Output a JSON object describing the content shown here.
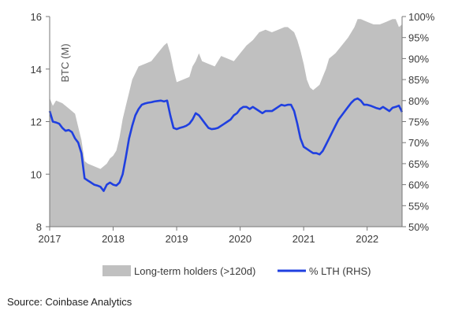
{
  "chart_data": {
    "type": "area",
    "xlabel": "",
    "ylabel": "BTC (M)",
    "ylim": [
      8,
      16
    ],
    "y2lim": [
      50,
      100
    ],
    "x_ticks": [
      "2017",
      "2018",
      "2019",
      "2020",
      "2021",
      "2022"
    ],
    "y_ticks": [
      "8",
      "10",
      "12",
      "14",
      "16"
    ],
    "y2_ticks": [
      "50%",
      "55%",
      "60%",
      "65%",
      "70%",
      "75%",
      "80%",
      "85%",
      "90%",
      "95%",
      "100%"
    ],
    "x_range": [
      2017.0,
      2022.55
    ],
    "grid": false,
    "legend_position": "bottom",
    "series": [
      {
        "name": "Long-term holders (>120d)",
        "axis": "left",
        "color": "#c0c0c0",
        "x": [
          2017.0,
          2017.05,
          2017.1,
          2017.2,
          2017.3,
          2017.4,
          2017.45,
          2017.5,
          2017.55,
          2017.6,
          2017.7,
          2017.8,
          2017.85,
          2017.9,
          2017.95,
          2018.0,
          2018.05,
          2018.1,
          2018.15,
          2018.2,
          2018.25,
          2018.3,
          2018.4,
          2018.5,
          2018.6,
          2018.7,
          2018.8,
          2018.85,
          2018.9,
          2018.95,
          2019.0,
          2019.1,
          2019.2,
          2019.25,
          2019.3,
          2019.35,
          2019.4,
          2019.5,
          2019.6,
          2019.7,
          2019.8,
          2019.9,
          2020.0,
          2020.1,
          2020.2,
          2020.3,
          2020.4,
          2020.5,
          2020.6,
          2020.7,
          2020.75,
          2020.8,
          2020.85,
          2020.9,
          2020.95,
          2021.0,
          2021.05,
          2021.1,
          2021.15,
          2021.2,
          2021.25,
          2021.3,
          2021.35,
          2021.4,
          2021.5,
          2021.6,
          2021.7,
          2021.75,
          2021.8,
          2021.85,
          2021.9,
          2022.0,
          2022.1,
          2022.2,
          2022.3,
          2022.4,
          2022.45,
          2022.5,
          2022.55
        ],
        "values": [
          12.9,
          12.6,
          12.8,
          12.7,
          12.5,
          12.3,
          11.8,
          11.3,
          10.5,
          10.4,
          10.3,
          10.2,
          10.3,
          10.4,
          10.6,
          10.7,
          10.9,
          11.4,
          12.1,
          12.6,
          13.1,
          13.6,
          14.1,
          14.2,
          14.3,
          14.6,
          14.9,
          15.0,
          14.6,
          14.0,
          13.5,
          13.6,
          13.7,
          14.1,
          14.3,
          14.6,
          14.3,
          14.2,
          14.1,
          14.5,
          14.4,
          14.3,
          14.6,
          14.9,
          15.1,
          15.4,
          15.5,
          15.4,
          15.5,
          15.6,
          15.6,
          15.5,
          15.4,
          15.1,
          14.7,
          14.2,
          13.6,
          13.3,
          13.2,
          13.3,
          13.4,
          13.7,
          14.0,
          14.4,
          14.6,
          14.9,
          15.2,
          15.4,
          15.6,
          15.9,
          15.9,
          15.8,
          15.7,
          15.7,
          15.8,
          15.9,
          15.9,
          15.6,
          15.7
        ]
      },
      {
        "name": "% LTH (RHS)",
        "axis": "right",
        "color": "#1f3fe0",
        "x": [
          2017.0,
          2017.05,
          2017.1,
          2017.15,
          2017.2,
          2017.25,
          2017.3,
          2017.35,
          2017.4,
          2017.45,
          2017.5,
          2017.55,
          2017.6,
          2017.65,
          2017.7,
          2017.75,
          2017.8,
          2017.85,
          2017.9,
          2017.95,
          2018.0,
          2018.05,
          2018.1,
          2018.15,
          2018.2,
          2018.25,
          2018.3,
          2018.35,
          2018.4,
          2018.45,
          2018.5,
          2018.55,
          2018.6,
          2018.65,
          2018.7,
          2018.75,
          2018.8,
          2018.85,
          2018.9,
          2018.95,
          2019.0,
          2019.05,
          2019.1,
          2019.15,
          2019.2,
          2019.25,
          2019.3,
          2019.35,
          2019.4,
          2019.45,
          2019.5,
          2019.55,
          2019.6,
          2019.65,
          2019.7,
          2019.75,
          2019.8,
          2019.85,
          2019.9,
          2019.95,
          2020.0,
          2020.05,
          2020.1,
          2020.15,
          2020.2,
          2020.25,
          2020.3,
          2020.35,
          2020.4,
          2020.45,
          2020.5,
          2020.55,
          2020.6,
          2020.65,
          2020.7,
          2020.75,
          2020.8,
          2020.85,
          2020.9,
          2020.95,
          2021.0,
          2021.05,
          2021.1,
          2021.15,
          2021.2,
          2021.25,
          2021.3,
          2021.35,
          2021.4,
          2021.45,
          2021.5,
          2021.55,
          2021.6,
          2021.65,
          2021.7,
          2021.75,
          2021.8,
          2021.85,
          2021.9,
          2021.95,
          2022.0,
          2022.05,
          2022.1,
          2022.15,
          2022.2,
          2022.25,
          2022.3,
          2022.35,
          2022.4,
          2022.45,
          2022.5,
          2022.55
        ],
        "values": [
          77.5,
          75.0,
          74.8,
          74.5,
          73.5,
          72.8,
          73.0,
          72.5,
          71.0,
          70.0,
          67.5,
          61.5,
          61.0,
          60.5,
          60.0,
          59.8,
          59.5,
          58.5,
          60.0,
          60.5,
          60.0,
          59.8,
          60.5,
          62.5,
          66.5,
          71.0,
          74.0,
          76.5,
          78.0,
          79.0,
          79.3,
          79.5,
          79.6,
          79.8,
          79.9,
          80.0,
          79.8,
          80.0,
          76.5,
          73.5,
          73.2,
          73.5,
          73.7,
          74.0,
          74.5,
          75.5,
          77.0,
          76.5,
          75.5,
          74.5,
          73.5,
          73.2,
          73.3,
          73.5,
          74.0,
          74.5,
          75.0,
          75.5,
          76.5,
          77.0,
          78.0,
          78.5,
          78.5,
          78.0,
          78.5,
          78.0,
          77.5,
          77.0,
          77.5,
          77.5,
          77.5,
          78.0,
          78.5,
          79.0,
          78.8,
          79.0,
          79.0,
          77.5,
          74.5,
          71.0,
          69.0,
          68.5,
          68.0,
          67.5,
          67.5,
          67.2,
          68.0,
          69.5,
          71.0,
          72.5,
          74.0,
          75.5,
          76.5,
          77.5,
          78.5,
          79.5,
          80.2,
          80.5,
          80.0,
          79.0,
          79.0,
          78.8,
          78.5,
          78.2,
          78.0,
          78.5,
          78.0,
          77.5,
          78.3,
          78.5,
          78.8,
          77.3
        ]
      }
    ]
  },
  "legend": {
    "items": [
      {
        "label": "Long-term holders (>120d)",
        "color": "#c0c0c0",
        "kind": "area"
      },
      {
        "label": "% LTH (RHS)",
        "color": "#1f3fe0",
        "kind": "line"
      }
    ]
  },
  "source": "Source: Coinbase Analytics"
}
